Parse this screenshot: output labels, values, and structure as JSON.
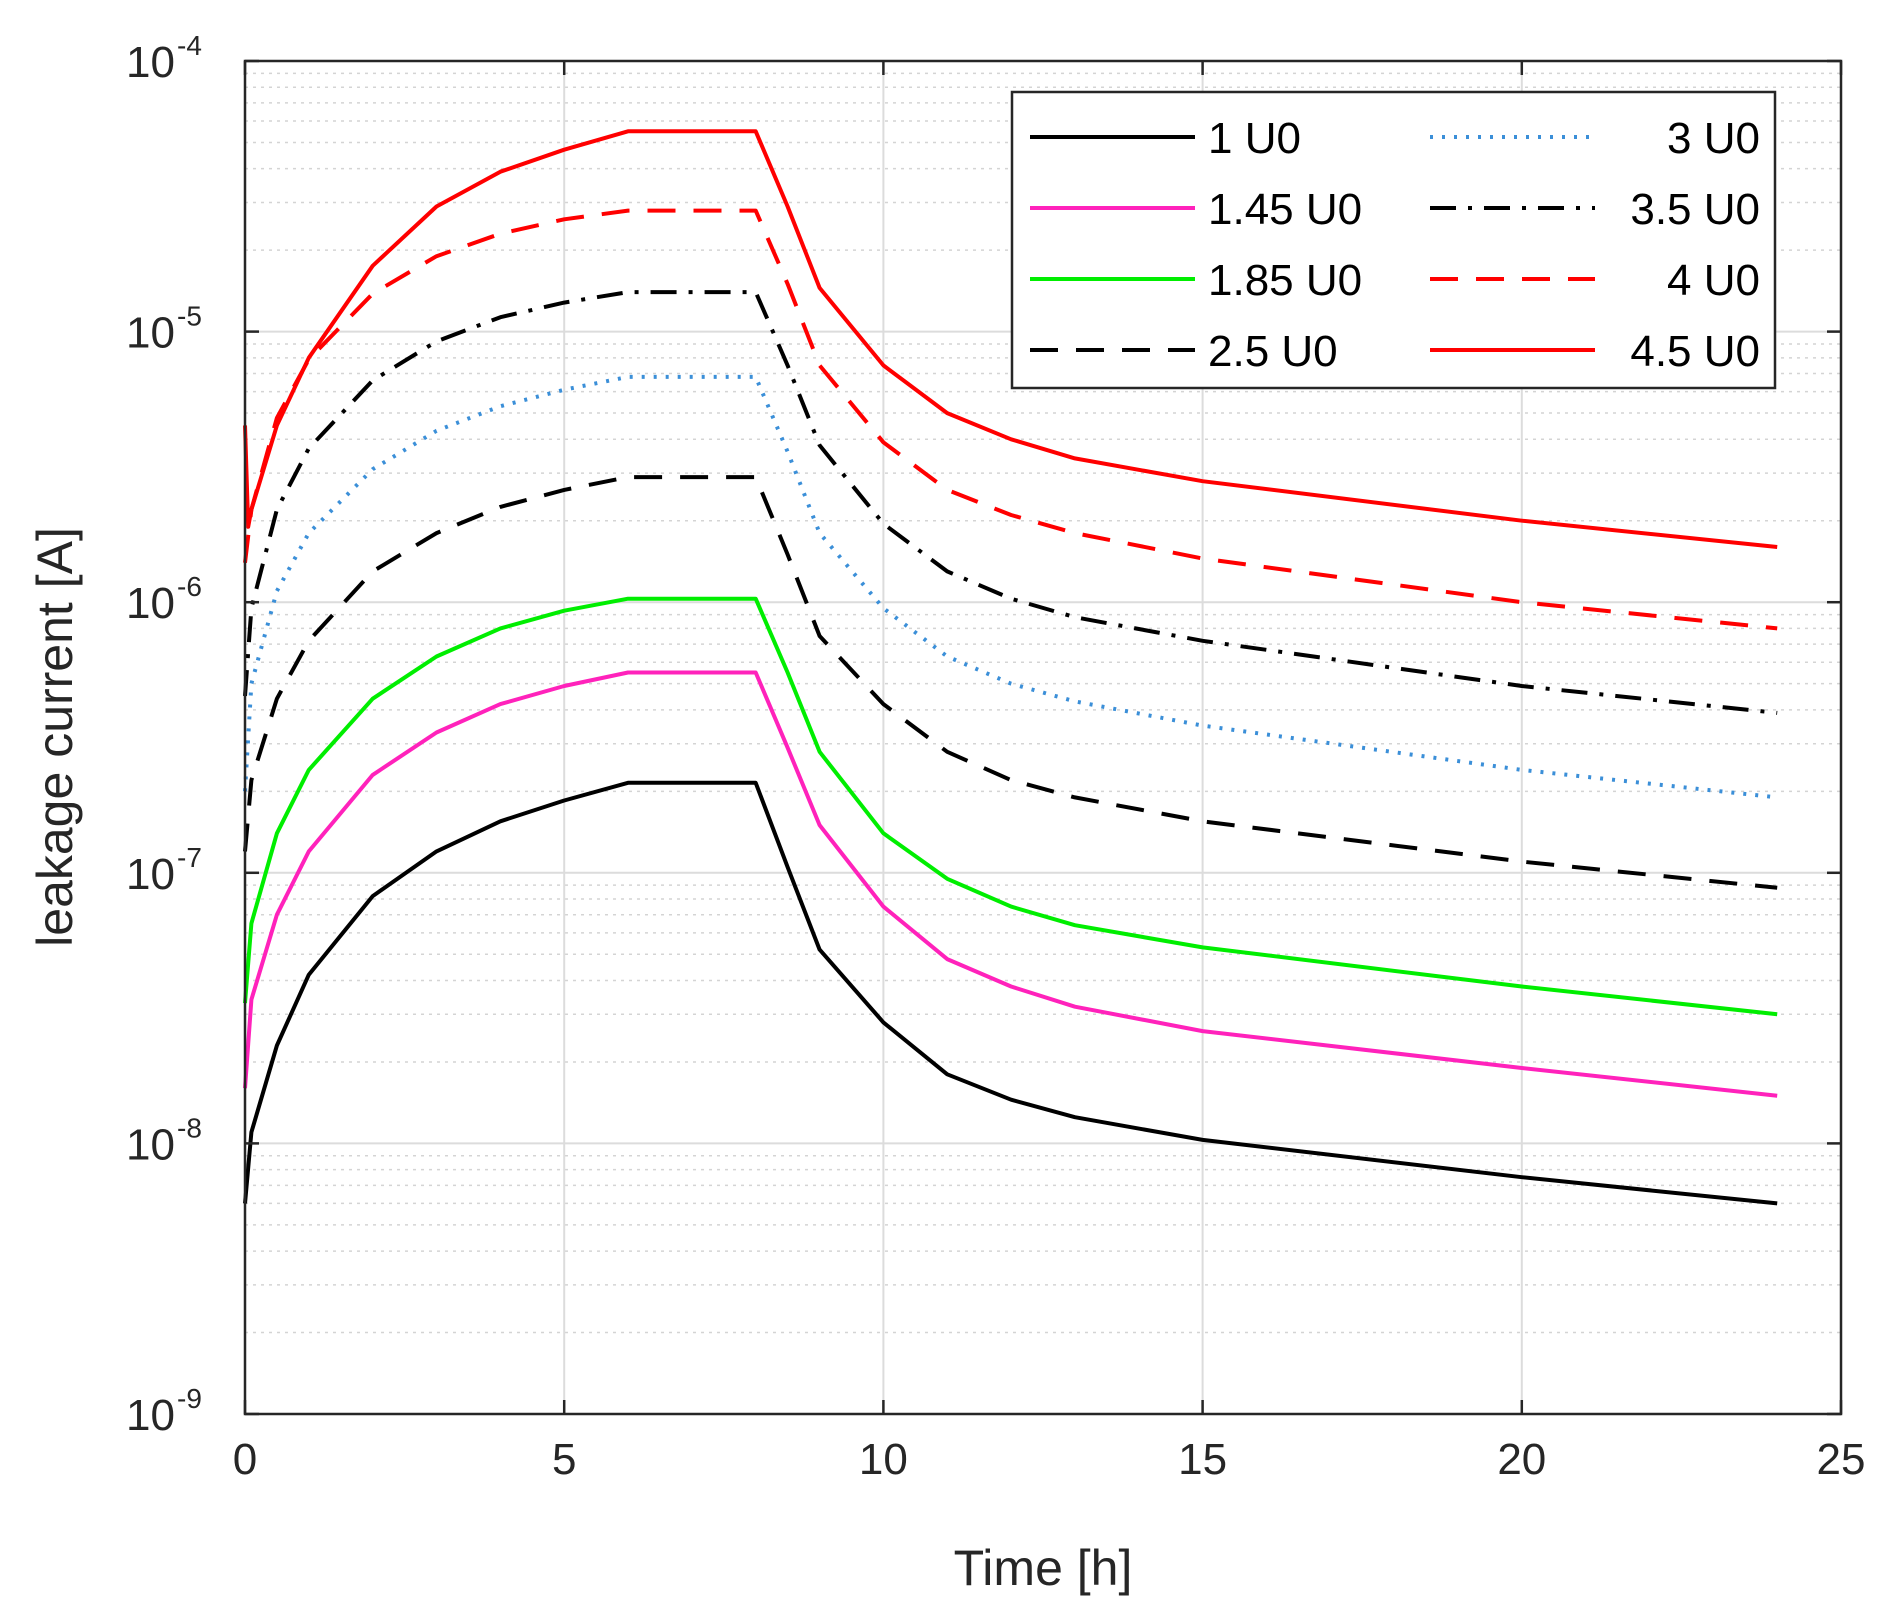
{
  "chart_data": {
    "type": "line",
    "title": "",
    "xlabel": "Time [h]",
    "ylabel": "leakage current [A]",
    "xlim": [
      0,
      25
    ],
    "ylim": [
      1e-09,
      0.0001
    ],
    "yscale": "log",
    "grid": true,
    "minor_grid": true,
    "legend_position": "top-right",
    "legend_columns": 2,
    "x_ticks": [
      {
        "value": 0,
        "label": "0"
      },
      {
        "value": 5,
        "label": "5"
      },
      {
        "value": 10,
        "label": "10"
      },
      {
        "value": 15,
        "label": "15"
      },
      {
        "value": 20,
        "label": "20"
      },
      {
        "value": 25,
        "label": "25"
      }
    ],
    "y_ticks": [
      {
        "value": 1e-09,
        "base": "10",
        "exp": "-9"
      },
      {
        "value": 1e-08,
        "base": "10",
        "exp": "-8"
      },
      {
        "value": 1e-07,
        "base": "10",
        "exp": "-7"
      },
      {
        "value": 1e-06,
        "base": "10",
        "exp": "-6"
      },
      {
        "value": 1e-05,
        "base": "10",
        "exp": "-5"
      },
      {
        "value": 0.0001,
        "base": "10",
        "exp": "-4"
      }
    ],
    "series": [
      {
        "name": "1 U0",
        "color": "#000000",
        "style": "solid",
        "x": [
          0,
          0.1,
          0.5,
          1,
          2,
          3,
          4,
          5,
          6,
          8,
          8.5,
          9,
          10,
          11,
          12,
          13,
          15,
          20,
          24
        ],
        "y": [
          6e-09,
          1.1e-08,
          2.3e-08,
          4.2e-08,
          8.2e-08,
          1.2e-07,
          1.55e-07,
          1.85e-07,
          2.15e-07,
          2.15e-07,
          1.05e-07,
          5.2e-08,
          2.8e-08,
          1.8e-08,
          1.45e-08,
          1.25e-08,
          1.03e-08,
          7.5e-09,
          6e-09
        ]
      },
      {
        "name": "1.45 U0",
        "color": "#ff22bb",
        "style": "solid",
        "x": [
          0,
          0.1,
          0.5,
          1,
          2,
          3,
          4,
          5,
          6,
          8,
          8.5,
          9,
          10,
          11,
          12,
          13,
          15,
          20,
          24
        ],
        "y": [
          1.6e-08,
          3.4e-08,
          7e-08,
          1.2e-07,
          2.3e-07,
          3.3e-07,
          4.2e-07,
          4.9e-07,
          5.5e-07,
          5.5e-07,
          2.9e-07,
          1.5e-07,
          7.5e-08,
          4.8e-08,
          3.8e-08,
          3.2e-08,
          2.6e-08,
          1.9e-08,
          1.5e-08
        ]
      },
      {
        "name": "1.85 U0",
        "color": "#00ee00",
        "style": "solid",
        "x": [
          0,
          0.1,
          0.5,
          1,
          2,
          3,
          4,
          5,
          6,
          8,
          8.5,
          9,
          10,
          11,
          12,
          13,
          15,
          20,
          24
        ],
        "y": [
          3.3e-08,
          6.5e-08,
          1.4e-07,
          2.4e-07,
          4.4e-07,
          6.3e-07,
          8e-07,
          9.3e-07,
          1.03e-06,
          1.03e-06,
          5.5e-07,
          2.8e-07,
          1.4e-07,
          9.5e-08,
          7.5e-08,
          6.4e-08,
          5.3e-08,
          3.8e-08,
          3e-08
        ]
      },
      {
        "name": "2.5 U0",
        "color": "#000000",
        "style": "dash",
        "x": [
          0,
          0.1,
          0.5,
          1,
          2,
          3,
          4,
          5,
          6,
          8,
          8.5,
          9,
          10,
          11,
          12,
          13,
          15,
          20,
          24
        ],
        "y": [
          1.2e-07,
          2.2e-07,
          4.4e-07,
          7.2e-07,
          1.3e-06,
          1.8e-06,
          2.25e-06,
          2.6e-06,
          2.9e-06,
          2.9e-06,
          1.5e-06,
          7.5e-07,
          4.2e-07,
          2.8e-07,
          2.2e-07,
          1.9e-07,
          1.55e-07,
          1.1e-07,
          8.8e-08
        ]
      },
      {
        "name": "3 U0",
        "color": "#3b8fd8",
        "style": "dot",
        "x": [
          0,
          0.1,
          0.5,
          1,
          2,
          3,
          4,
          5,
          6,
          8,
          8.5,
          9,
          10,
          11,
          12,
          13,
          15,
          20,
          24
        ],
        "y": [
          2e-07,
          5e-07,
          1.1e-06,
          1.8e-06,
          3.1e-06,
          4.3e-06,
          5.3e-06,
          6.1e-06,
          6.8e-06,
          6.8e-06,
          3.6e-06,
          1.8e-06,
          9.5e-07,
          6.3e-07,
          5e-07,
          4.3e-07,
          3.5e-07,
          2.4e-07,
          1.9e-07
        ]
      },
      {
        "name": "3.5 U0",
        "color": "#000000",
        "style": "dashdot",
        "x": [
          0,
          0.1,
          0.5,
          1,
          2,
          3,
          4,
          5,
          6,
          8,
          8.5,
          9,
          10,
          11,
          12,
          13,
          15,
          20,
          24
        ],
        "y": [
          4.5e-07,
          9.5e-07,
          2.2e-06,
          3.7e-06,
          6.6e-06,
          9.2e-06,
          1.13e-05,
          1.28e-05,
          1.4e-05,
          1.4e-05,
          7.5e-06,
          3.8e-06,
          1.95e-06,
          1.3e-06,
          1.03e-06,
          8.8e-07,
          7.2e-07,
          4.9e-07,
          3.9e-07
        ]
      },
      {
        "name": "4 U0",
        "color": "#ff0000",
        "style": "dash",
        "x": [
          0,
          0.1,
          0.5,
          1,
          2,
          3,
          4,
          5,
          6,
          8,
          8.5,
          9,
          10,
          11,
          12,
          13,
          15,
          20,
          24
        ],
        "y": [
          1.4e-06,
          2.2e-06,
          4.8e-06,
          7.9e-06,
          1.38e-05,
          1.9e-05,
          2.3e-05,
          2.6e-05,
          2.8e-05,
          2.8e-05,
          1.5e-05,
          7.5e-06,
          3.9e-06,
          2.6e-06,
          2.1e-06,
          1.8e-06,
          1.45e-06,
          1e-06,
          8e-07
        ]
      },
      {
        "name": "4.5 U0",
        "color": "#ff0000",
        "style": "solid",
        "x": [
          0,
          0.05,
          0.1,
          0.5,
          1,
          2,
          3,
          4,
          5,
          6,
          8,
          8.5,
          9,
          10,
          11,
          12,
          13,
          15,
          20,
          24
        ],
        "y": [
          4.5e-06,
          1.9e-06,
          2.2e-06,
          4.5e-06,
          8e-06,
          1.75e-05,
          2.9e-05,
          3.9e-05,
          4.7e-05,
          5.5e-05,
          5.5e-05,
          2.9e-05,
          1.45e-05,
          7.5e-06,
          5e-06,
          4e-06,
          3.4e-06,
          2.8e-06,
          2e-06,
          1.6e-06
        ]
      }
    ]
  }
}
